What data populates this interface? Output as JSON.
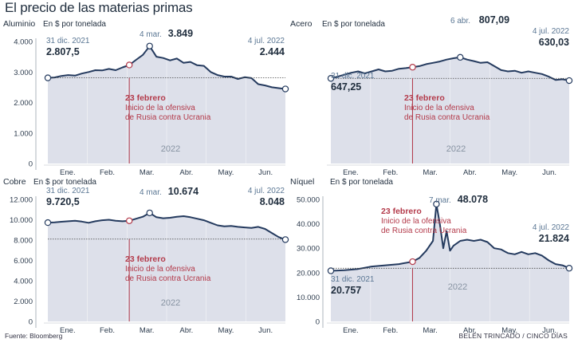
{
  "title": "El precio de las materias primas",
  "source": "Fuente: Bloomberg",
  "credit": "BELÉN TRINCADO / CINCO DÍAS",
  "colors": {
    "line": "#243a5e",
    "fill": "#dde0ea",
    "event": "#b33a4a",
    "label": "#5b7794",
    "axis": "#2c3b4d"
  },
  "chart_data": [
    {
      "type": "area",
      "name": "Aluminio",
      "unit": "En $ por tonelada",
      "months": [
        "Ene.",
        "Feb.",
        "Mar.",
        "Abr.",
        "May.",
        "Jun."
      ],
      "year_label": "2022",
      "yticks": [
        "4.000",
        "3.000",
        "2.000",
        "1.000",
        "0"
      ],
      "ylim": [
        0,
        4000
      ],
      "start_label": {
        "date": "31 dic. 2021",
        "value": "2.807,5"
      },
      "peak_label": {
        "date": "4 mar.",
        "value": "3.849"
      },
      "end_label": {
        "date": "4 jul. 2022",
        "value": "2.444"
      },
      "event_label": {
        "title": "23 febrero",
        "line1": "Inicio de la ofensiva",
        "line2": "de Rusia contra Ucrania"
      },
      "points": [
        [
          0,
          2807
        ],
        [
          1,
          2820
        ],
        [
          2,
          2870
        ],
        [
          3,
          2900
        ],
        [
          4,
          2880
        ],
        [
          5,
          2950
        ],
        [
          6,
          3000
        ],
        [
          7,
          3060
        ],
        [
          8,
          3050
        ],
        [
          9,
          3100
        ],
        [
          10,
          3060
        ],
        [
          11,
          3150
        ],
        [
          12,
          3230
        ],
        [
          13,
          3400
        ],
        [
          14,
          3560
        ],
        [
          15,
          3849
        ],
        [
          16,
          3500
        ],
        [
          17,
          3460
        ],
        [
          18,
          3380
        ],
        [
          19,
          3440
        ],
        [
          20,
          3300
        ],
        [
          21,
          3330
        ],
        [
          22,
          3220
        ],
        [
          23,
          3200
        ],
        [
          24,
          3000
        ],
        [
          25,
          2900
        ],
        [
          26,
          2850
        ],
        [
          27,
          2850
        ],
        [
          28,
          2770
        ],
        [
          29,
          2830
        ],
        [
          30,
          2800
        ],
        [
          31,
          2600
        ],
        [
          32,
          2560
        ],
        [
          33,
          2500
        ],
        [
          34,
          2470
        ],
        [
          35,
          2444
        ]
      ],
      "x_peak": 15,
      "x_event": 12,
      "y_ref": 2807
    },
    {
      "type": "area",
      "name": "Acero",
      "unit": "En $ por tonelada",
      "months": [
        "Ene.",
        "Feb.",
        "Mar.",
        "Abr.",
        "May.",
        "Jun."
      ],
      "year_label": "2022",
      "yticks": [],
      "ylim": [
        0,
        1000
      ],
      "start_label": {
        "date": "31 dic. 2021",
        "value": "647,25"
      },
      "peak_label": {
        "date": "6 abr.",
        "value": "807,09"
      },
      "end_label": {
        "date": "4 jul. 2022",
        "value": "630,03"
      },
      "event_label": {
        "title": "23 febrero",
        "line1": "Inicio de la ofensiva",
        "line2": "de Rusia contra Ucrania"
      },
      "points": [
        [
          0,
          647
        ],
        [
          1,
          660
        ],
        [
          2,
          675
        ],
        [
          3,
          690
        ],
        [
          4,
          700
        ],
        [
          5,
          685
        ],
        [
          6,
          700
        ],
        [
          7,
          715
        ],
        [
          8,
          700
        ],
        [
          9,
          705
        ],
        [
          10,
          720
        ],
        [
          11,
          725
        ],
        [
          12,
          732
        ],
        [
          13,
          740
        ],
        [
          14,
          755
        ],
        [
          15,
          765
        ],
        [
          16,
          775
        ],
        [
          17,
          790
        ],
        [
          18,
          800
        ],
        [
          19,
          807
        ],
        [
          20,
          790
        ],
        [
          21,
          778
        ],
        [
          22,
          765
        ],
        [
          23,
          770
        ],
        [
          24,
          740
        ],
        [
          25,
          710
        ],
        [
          26,
          700
        ],
        [
          27,
          705
        ],
        [
          28,
          690
        ],
        [
          29,
          700
        ],
        [
          30,
          690
        ],
        [
          31,
          680
        ],
        [
          32,
          660
        ],
        [
          33,
          635
        ],
        [
          34,
          640
        ],
        [
          35,
          630
        ]
      ],
      "x_peak": 19,
      "x_event": 12,
      "y_ref": 647
    },
    {
      "type": "area",
      "name": "Cobre",
      "unit": "En $ por tonelada",
      "months": [
        "Ene.",
        "Feb.",
        "Mar.",
        "Abr.",
        "May.",
        "Jun."
      ],
      "year_label": "2022",
      "yticks": [
        "12.000",
        "10.000",
        "8.000",
        "6.000",
        "4.000",
        "2.000",
        "0"
      ],
      "ylim": [
        0,
        12000
      ],
      "start_label": {
        "date": "31 dic. 2021",
        "value": "9.720,5"
      },
      "peak_label": {
        "date": "4 mar.",
        "value": "10.674"
      },
      "end_label": {
        "date": "4 jul. 2022",
        "value": "8.048"
      },
      "event_label": {
        "title": "23 febrero",
        "line1": "Inicio de la ofensiva",
        "line2": "de Rusia contra Ucrania"
      },
      "points": [
        [
          0,
          9720
        ],
        [
          1,
          9750
        ],
        [
          2,
          9800
        ],
        [
          3,
          9850
        ],
        [
          4,
          9900
        ],
        [
          5,
          9820
        ],
        [
          6,
          9700
        ],
        [
          7,
          9850
        ],
        [
          8,
          9950
        ],
        [
          9,
          10000
        ],
        [
          10,
          9900
        ],
        [
          11,
          9850
        ],
        [
          12,
          9900
        ],
        [
          13,
          10100
        ],
        [
          14,
          10300
        ],
        [
          15,
          10674
        ],
        [
          16,
          10250
        ],
        [
          17,
          10150
        ],
        [
          18,
          10200
        ],
        [
          19,
          10300
        ],
        [
          20,
          10350
        ],
        [
          21,
          10250
        ],
        [
          22,
          10100
        ],
        [
          23,
          9950
        ],
        [
          24,
          9700
        ],
        [
          25,
          9450
        ],
        [
          26,
          9350
        ],
        [
          27,
          9400
        ],
        [
          28,
          9300
        ],
        [
          29,
          9250
        ],
        [
          30,
          9200
        ],
        [
          31,
          9300
        ],
        [
          32,
          9100
        ],
        [
          33,
          8700
        ],
        [
          34,
          8300
        ],
        [
          35,
          8048
        ]
      ],
      "x_peak": 15,
      "x_event": 12,
      "y_ref": 8100
    },
    {
      "type": "area",
      "name": "Níquel",
      "unit": "En $ por tonelada",
      "months": [
        "Ene.",
        "Feb.",
        "Mar.",
        "Abr.",
        "May.",
        "Jun."
      ],
      "year_label": "2022",
      "yticks": [
        "50.000",
        "40.000",
        "30.000",
        "20.000",
        "10.000",
        "0"
      ],
      "ylim": [
        0,
        50000
      ],
      "start_label": {
        "date": "31 dic. 2021",
        "value": "20.757"
      },
      "peak_label": {
        "date": "7 mar.",
        "value": "48.078"
      },
      "end_label": {
        "date": "4 jul. 2022",
        "value": "21.824"
      },
      "event_label": {
        "title": "23 febrero",
        "line1": "Inicio de la ofensiva",
        "line2": "de Rusia contra Ucrania"
      },
      "points": [
        [
          0,
          20757
        ],
        [
          2,
          21000
        ],
        [
          4,
          21500
        ],
        [
          6,
          22500
        ],
        [
          8,
          23000
        ],
        [
          10,
          23500
        ],
        [
          12,
          24500
        ],
        [
          13,
          26000
        ],
        [
          14,
          29000
        ],
        [
          15,
          33000
        ],
        [
          15.5,
          48078
        ],
        [
          16,
          40000
        ],
        [
          16.5,
          30000
        ],
        [
          17,
          37000
        ],
        [
          17.5,
          29000
        ],
        [
          18,
          31000
        ],
        [
          19,
          33000
        ],
        [
          20,
          33500
        ],
        [
          21,
          33000
        ],
        [
          22,
          33500
        ],
        [
          23,
          32500
        ],
        [
          24,
          30000
        ],
        [
          25,
          29500
        ],
        [
          26,
          28000
        ],
        [
          27,
          27500
        ],
        [
          28,
          28500
        ],
        [
          29,
          27500
        ],
        [
          30,
          28000
        ],
        [
          31,
          27000
        ],
        [
          32,
          25000
        ],
        [
          33,
          23500
        ],
        [
          34,
          23000
        ],
        [
          35,
          21824
        ]
      ],
      "x_peak": 15.5,
      "x_event": 12,
      "y_ref": 21800
    }
  ]
}
